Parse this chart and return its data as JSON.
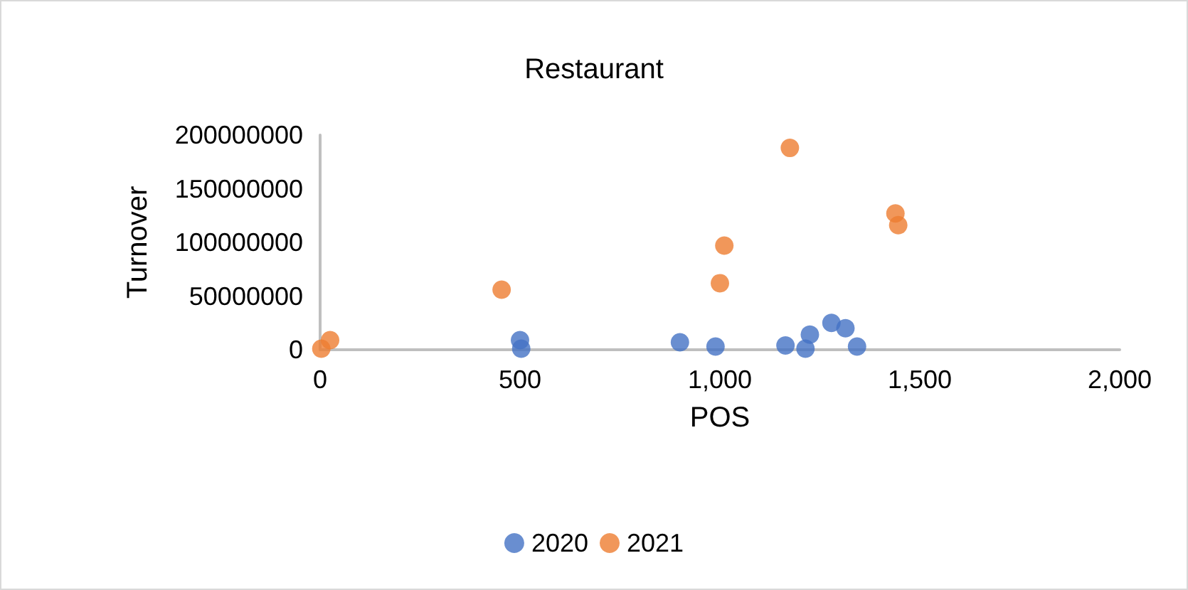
{
  "chart_data": {
    "type": "scatter",
    "title": "Restaurant",
    "xlabel": "POS",
    "ylabel": "Turnover",
    "series": [
      {
        "name": "2020",
        "color": "#4472c4",
        "x": [
          500,
          503,
          900,
          989,
          1164,
          1214,
          1225,
          1279,
          1314,
          1343
        ],
        "values": [
          9000000,
          1000000,
          7000000,
          3000000,
          4000000,
          1000000,
          14000000,
          25000000,
          20000000,
          3000000
        ]
      },
      {
        "name": "2021",
        "color": "#ed7d31",
        "x": [
          3,
          25,
          454,
          1000,
          1011,
          1175,
          1439,
          1446
        ],
        "values": [
          1000000,
          9000000,
          56000000,
          62000000,
          97000000,
          188000000,
          127000000,
          116000000
        ]
      }
    ],
    "xlim": [
      0,
      2000
    ],
    "xticks": [
      0,
      500,
      {
        "value": 1000,
        "label": "1,000"
      },
      {
        "value": 1500,
        "label": "1,500"
      },
      {
        "value": 2000,
        "label": "2,000"
      }
    ],
    "ylim": [
      0,
      200000000
    ],
    "yticks": [
      0,
      50000000,
      100000000,
      150000000,
      200000000
    ],
    "grid": false,
    "legend": "bottom",
    "marker": "circle"
  }
}
